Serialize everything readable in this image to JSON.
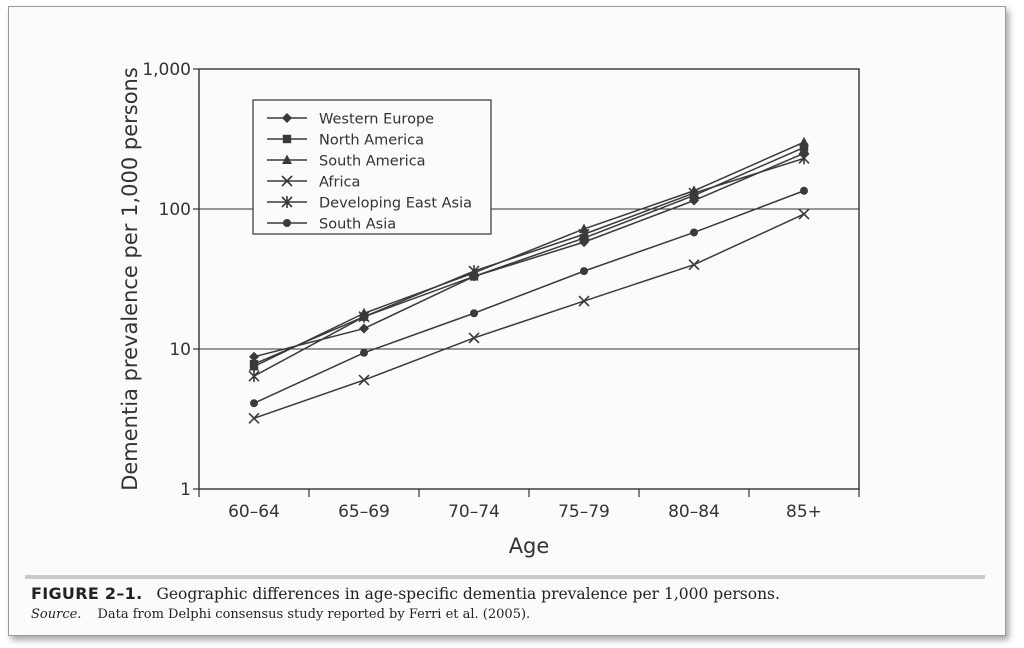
{
  "figure": {
    "label": "FIGURE 2–1.",
    "caption": "Geographic differences in age-specific dementia prevalence per 1,000 persons.",
    "source_label": "Source.",
    "source_text": "Data from Delphi consensus study reported by Ferri et al. (2005)."
  },
  "chart_data": {
    "type": "line",
    "xlabel": "Age",
    "ylabel": "Dementia prevalence per 1,000 persons",
    "categories": [
      "60–64",
      "65–69",
      "70–74",
      "75–79",
      "80–84",
      "85+"
    ],
    "yscale": "log",
    "ylim": [
      1,
      1000
    ],
    "yticks": [
      1,
      10,
      100,
      1000
    ],
    "ytick_labels": [
      "1",
      "10",
      "100",
      "1,000"
    ],
    "grid": "horizontal",
    "legend_position": "top-left",
    "series": [
      {
        "name": "Western Europe",
        "marker": "diamond",
        "values": [
          8.8,
          14,
          33,
          58,
          115,
          250
        ]
      },
      {
        "name": "North America",
        "marker": "square",
        "values": [
          7.8,
          17,
          33,
          62,
          125,
          275
        ]
      },
      {
        "name": "South America",
        "marker": "triangle",
        "values": [
          7.5,
          18,
          35,
          72,
          135,
          300
        ]
      },
      {
        "name": "Africa",
        "marker": "x",
        "values": [
          3.2,
          6,
          12,
          22,
          40,
          92
        ]
      },
      {
        "name": "Developing East Asia",
        "marker": "asterisk",
        "values": [
          6.4,
          17,
          36,
          66,
          130,
          230
        ]
      },
      {
        "name": "South Asia",
        "marker": "circle",
        "values": [
          4.1,
          9.4,
          18,
          36,
          68,
          135
        ]
      }
    ]
  }
}
